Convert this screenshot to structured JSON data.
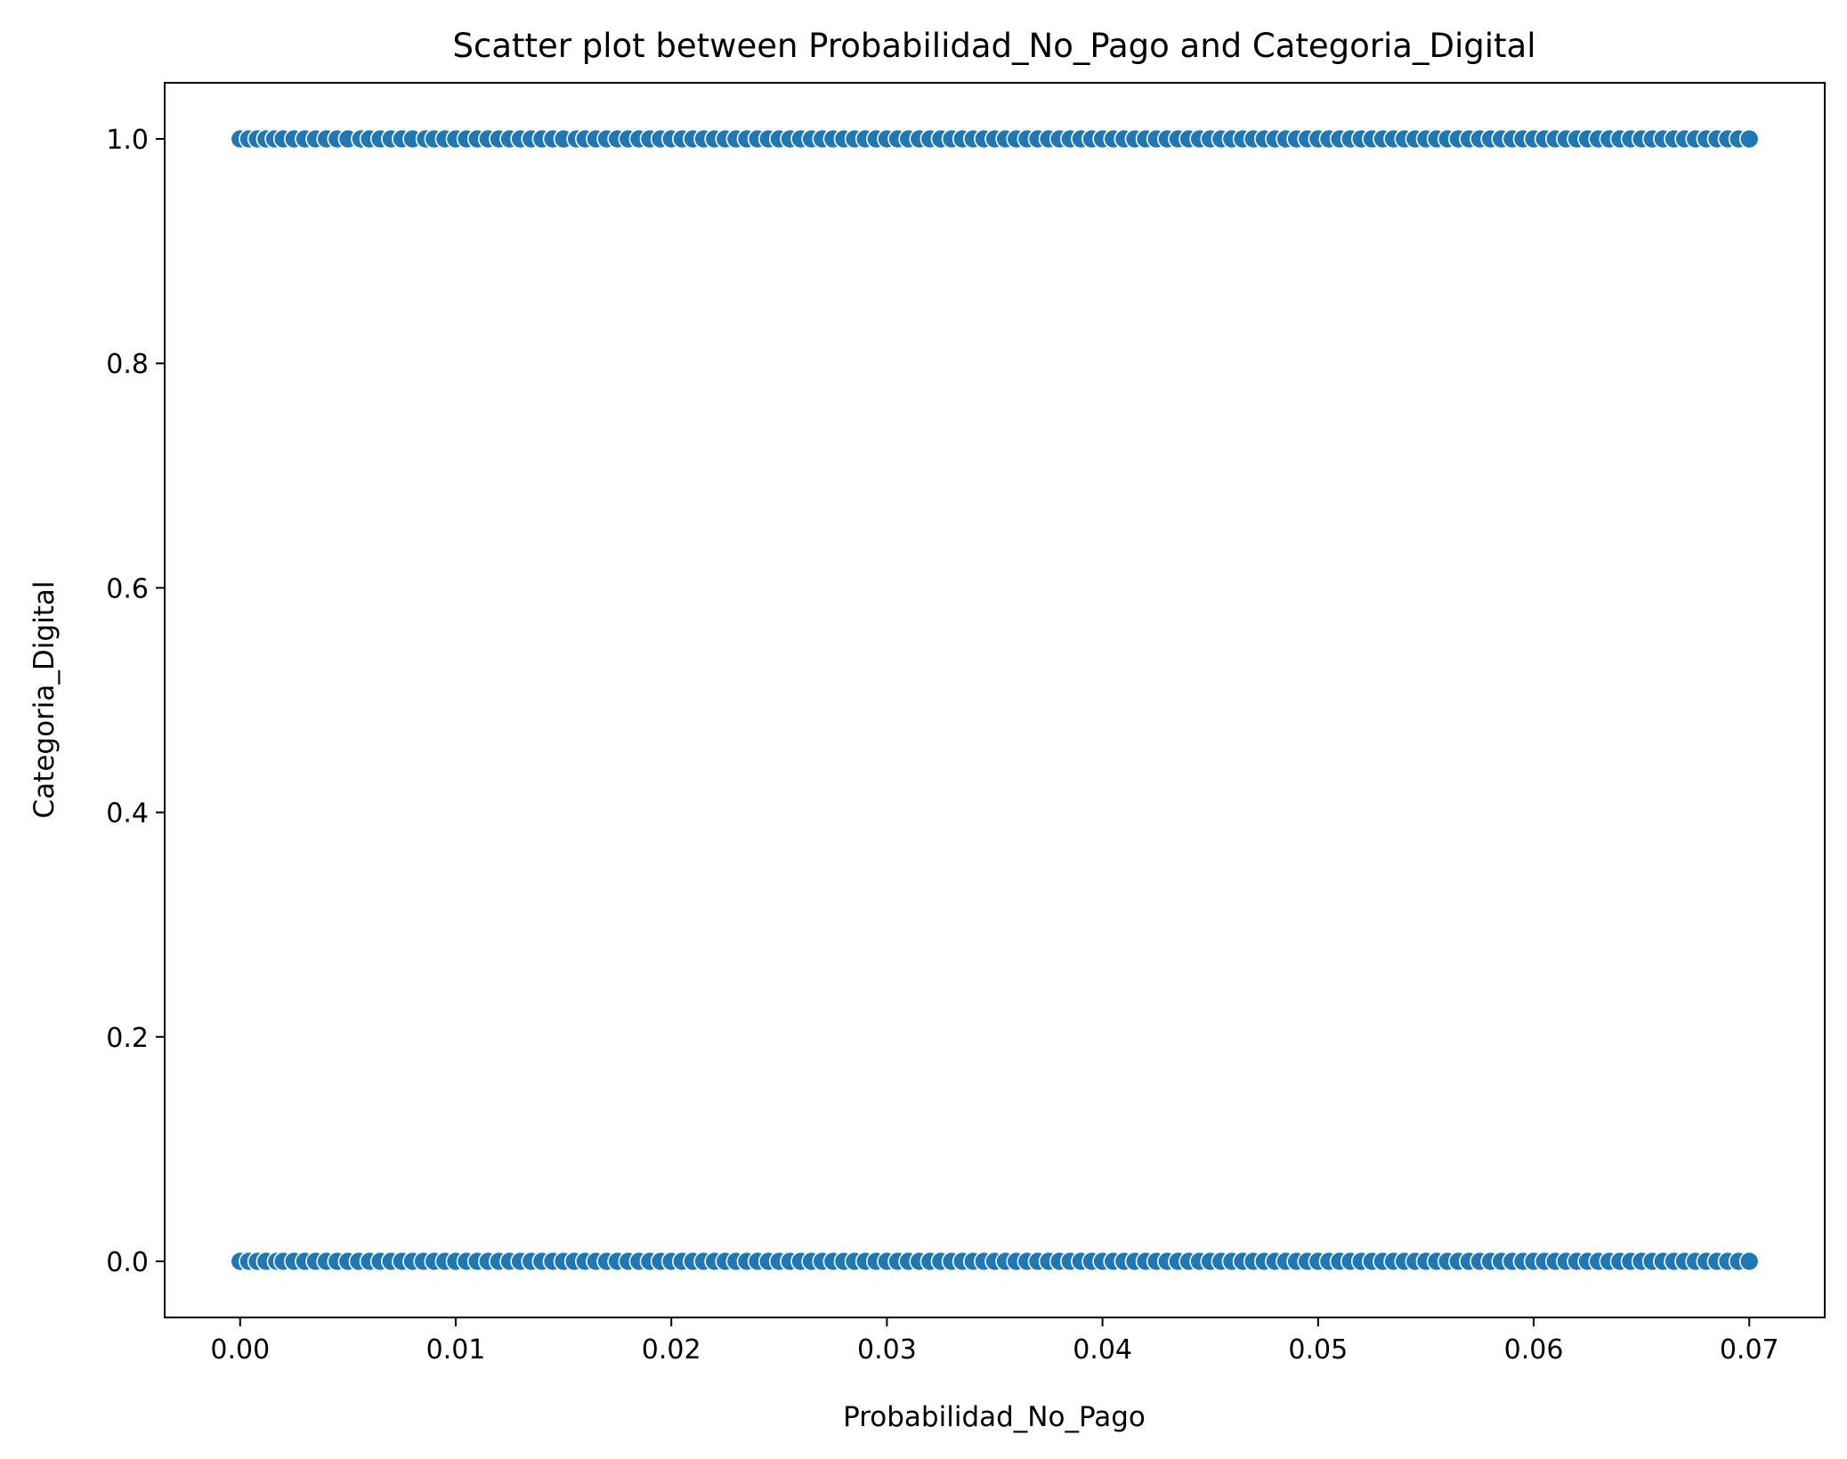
{
  "chart_data": {
    "type": "scatter",
    "title": "Scatter plot between Probabilidad_No_Pago and Categoria_Digital",
    "xlabel": "Probabilidad_No_Pago",
    "ylabel": "Categoria_Digital",
    "xlim": [
      -0.0035,
      0.0735
    ],
    "ylim": [
      -0.05,
      1.05
    ],
    "xticks": [
      0.0,
      0.01,
      0.02,
      0.03,
      0.04,
      0.05,
      0.06,
      0.07
    ],
    "xtick_labels": [
      "0.00",
      "0.01",
      "0.02",
      "0.03",
      "0.04",
      "0.05",
      "0.06",
      "0.07"
    ],
    "yticks": [
      0.0,
      0.2,
      0.4,
      0.6,
      0.8,
      1.0
    ],
    "ytick_labels": [
      "0.0",
      "0.2",
      "0.4",
      "0.6",
      "0.8",
      "1.0"
    ],
    "grid": false,
    "point_color": "#1f77b4",
    "point_edge_color": "#ffffff",
    "series": [
      {
        "y_value": 1.0,
        "x": [
          0.0,
          0.0004,
          0.0008,
          0.0012,
          0.0016,
          0.002,
          0.0025,
          0.003,
          0.0035,
          0.004,
          0.0045,
          0.005,
          0.0056,
          0.006,
          0.0065,
          0.007,
          0.0075,
          0.008,
          0.0086,
          0.009,
          0.0095,
          0.01,
          0.0105,
          0.011,
          0.0115,
          0.012,
          0.0125,
          0.013,
          0.0135,
          0.014,
          0.0145,
          0.015,
          0.0156,
          0.016,
          0.0165,
          0.017,
          0.0175,
          0.018,
          0.0185,
          0.019,
          0.0195,
          0.02,
          0.0205,
          0.021,
          0.0215,
          0.022,
          0.0225,
          0.023,
          0.0235,
          0.024,
          0.0245,
          0.025,
          0.0255,
          0.026,
          0.0265,
          0.027,
          0.0275,
          0.028,
          0.0285,
          0.029,
          0.0295,
          0.03,
          0.0305,
          0.031,
          0.0315,
          0.032,
          0.0325,
          0.033,
          0.0335,
          0.034,
          0.0345,
          0.035,
          0.0355,
          0.036,
          0.0365,
          0.037,
          0.0375,
          0.038,
          0.0385,
          0.039,
          0.0395,
          0.04,
          0.0405,
          0.041,
          0.0415,
          0.042,
          0.0425,
          0.043,
          0.0435,
          0.044,
          0.0445,
          0.045,
          0.0455,
          0.046,
          0.0465,
          0.047,
          0.0475,
          0.048,
          0.0485,
          0.049,
          0.0495,
          0.05,
          0.0505,
          0.051,
          0.0515,
          0.052,
          0.0525,
          0.053,
          0.0535,
          0.054,
          0.0545,
          0.055,
          0.0555,
          0.056,
          0.0565,
          0.057,
          0.0575,
          0.058,
          0.0585,
          0.059,
          0.0595,
          0.06,
          0.0605,
          0.061,
          0.0615,
          0.062,
          0.0625,
          0.063,
          0.0635,
          0.064,
          0.0645,
          0.065,
          0.0655,
          0.066,
          0.0665,
          0.067,
          0.0675,
          0.068,
          0.0685,
          0.069,
          0.0695,
          0.07
        ]
      },
      {
        "y_value": 0.0,
        "x": [
          0.0,
          0.0004,
          0.0008,
          0.0012,
          0.0017,
          0.002,
          0.0025,
          0.003,
          0.0035,
          0.004,
          0.0045,
          0.005,
          0.0055,
          0.006,
          0.0065,
          0.007,
          0.0075,
          0.008,
          0.0085,
          0.009,
          0.0095,
          0.01,
          0.0105,
          0.011,
          0.0115,
          0.012,
          0.0125,
          0.013,
          0.0135,
          0.014,
          0.0145,
          0.015,
          0.0155,
          0.016,
          0.0165,
          0.017,
          0.0175,
          0.018,
          0.0185,
          0.019,
          0.0195,
          0.02,
          0.0205,
          0.021,
          0.0215,
          0.022,
          0.0225,
          0.023,
          0.0235,
          0.024,
          0.0245,
          0.025,
          0.0255,
          0.026,
          0.0265,
          0.027,
          0.0275,
          0.028,
          0.0285,
          0.029,
          0.0295,
          0.03,
          0.0305,
          0.031,
          0.0315,
          0.032,
          0.0325,
          0.033,
          0.0335,
          0.034,
          0.0345,
          0.035,
          0.0355,
          0.036,
          0.0365,
          0.037,
          0.0375,
          0.038,
          0.0385,
          0.039,
          0.0395,
          0.04,
          0.0405,
          0.041,
          0.0415,
          0.042,
          0.0425,
          0.043,
          0.0435,
          0.044,
          0.0445,
          0.045,
          0.0455,
          0.046,
          0.0465,
          0.047,
          0.0475,
          0.048,
          0.0485,
          0.049,
          0.0495,
          0.05,
          0.0505,
          0.051,
          0.0515,
          0.052,
          0.0525,
          0.053,
          0.0535,
          0.054,
          0.0545,
          0.055,
          0.0555,
          0.056,
          0.0565,
          0.057,
          0.0575,
          0.058,
          0.0585,
          0.059,
          0.0595,
          0.06,
          0.0605,
          0.061,
          0.0615,
          0.062,
          0.0625,
          0.063,
          0.0635,
          0.064,
          0.0645,
          0.065,
          0.0655,
          0.066,
          0.0665,
          0.067,
          0.0675,
          0.068,
          0.0685,
          0.069,
          0.0695,
          0.07
        ]
      }
    ]
  }
}
